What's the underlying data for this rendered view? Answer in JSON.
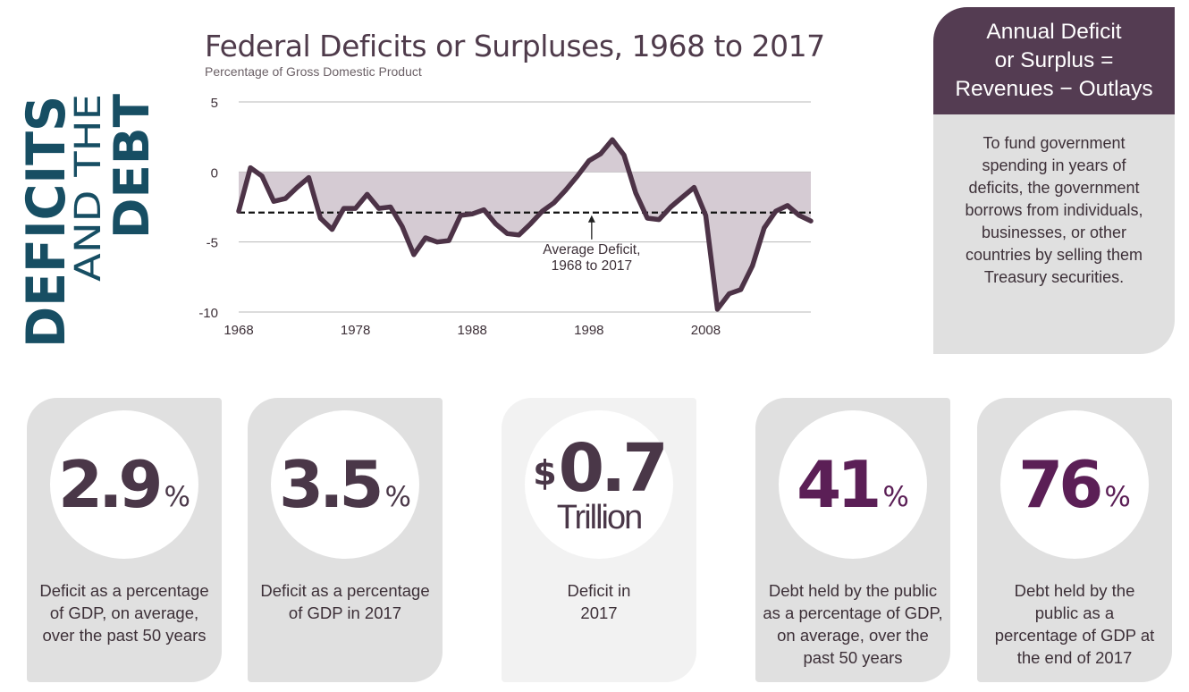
{
  "side_title": {
    "line1": "DEFICITS",
    "line2": "AND THE",
    "line3": "DEBT",
    "color": "#174e63"
  },
  "chart_data": {
    "type": "area",
    "title": "Federal Deficits or Surpluses, 1968 to 2017",
    "subtitle": "Percentage of Gross Domestic Product",
    "xlabel": "",
    "ylabel": "",
    "ylim": [
      -10,
      5
    ],
    "xlim": [
      1968,
      2017
    ],
    "yticks": [
      5,
      0,
      -5,
      -10
    ],
    "xticks": [
      1968,
      1978,
      1988,
      1998,
      2008
    ],
    "x": [
      1968,
      1969,
      1970,
      1971,
      1972,
      1973,
      1974,
      1975,
      1976,
      1977,
      1978,
      1979,
      1980,
      1981,
      1982,
      1983,
      1984,
      1985,
      1986,
      1987,
      1988,
      1989,
      1990,
      1991,
      1992,
      1993,
      1994,
      1995,
      1996,
      1997,
      1998,
      1999,
      2000,
      2001,
      2002,
      2003,
      2004,
      2005,
      2006,
      2007,
      2008,
      2009,
      2010,
      2011,
      2012,
      2013,
      2014,
      2015,
      2016,
      2017
    ],
    "values": [
      -2.8,
      0.3,
      -0.3,
      -2.1,
      -1.9,
      -1.1,
      -0.4,
      -3.3,
      -4.1,
      -2.6,
      -2.6,
      -1.6,
      -2.6,
      -2.5,
      -3.9,
      -5.9,
      -4.7,
      -5.0,
      -4.9,
      -3.1,
      -3.0,
      -2.7,
      -3.7,
      -4.4,
      -4.5,
      -3.7,
      -2.8,
      -2.2,
      -1.3,
      -0.3,
      0.8,
      1.3,
      2.3,
      1.2,
      -1.5,
      -3.3,
      -3.4,
      -2.5,
      -1.8,
      -1.1,
      -3.1,
      -9.8,
      -8.7,
      -8.4,
      -6.7,
      -4.0,
      -2.8,
      -2.4,
      -3.1,
      -3.5
    ],
    "reference_line": {
      "value": -2.9,
      "label_line1": "Average Deficit,",
      "label_line2": "1968 to 2017"
    },
    "line_color": "#4d3347",
    "fill_color": "#d5cbd3",
    "grid": true
  },
  "formula": {
    "line1": "Annual Deficit",
    "line2": "or Surplus =",
    "line3": "Revenues − Outlays",
    "body": "To fund government spending in years of deficits, the government borrows from individuals, businesses, or other countries by selling them Treasury securities."
  },
  "stats": [
    {
      "value": "2.9",
      "suffix": "%",
      "desc": "Deficit as a percentage of GDP, on average, over the past 50 years"
    },
    {
      "value": "3.5",
      "suffix": "%",
      "desc": "Deficit as a percentage of GDP in 2017"
    },
    {
      "prefix": "$",
      "value": "0.7",
      "unit": "Trillion",
      "desc": "Deficit in 2017"
    },
    {
      "value": "41",
      "suffix": "%",
      "desc": "Debt held by the public as a percentage of GDP, on average, over the past 50 years"
    },
    {
      "value": "76",
      "suffix": "%",
      "desc": "Debt held by the public as a percentage of GDP at the end of 2017"
    }
  ]
}
